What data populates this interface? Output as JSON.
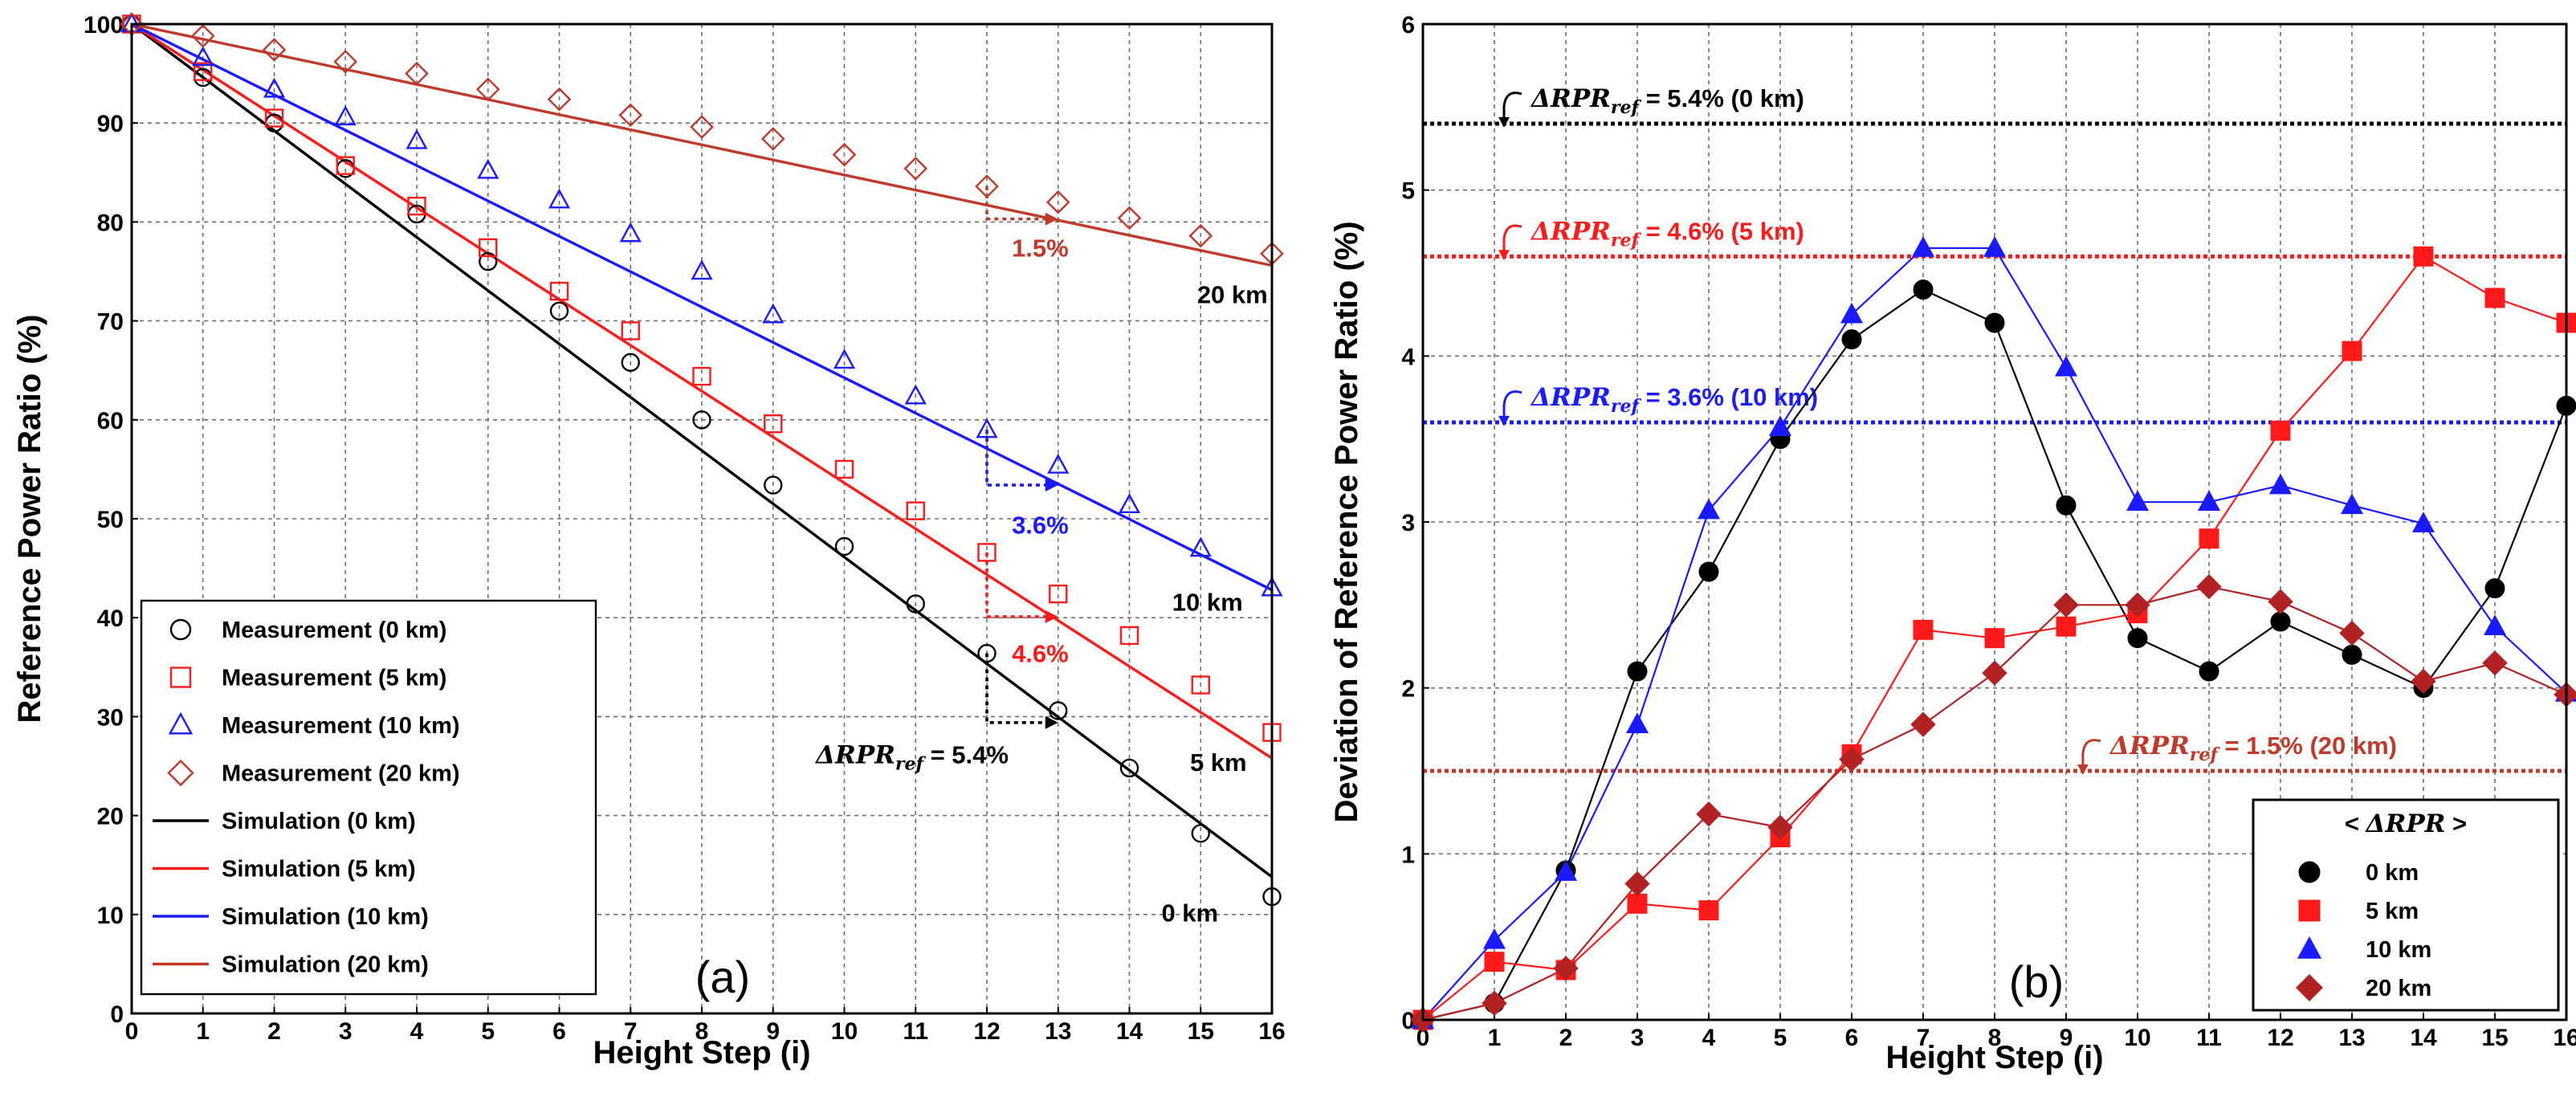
{
  "colors": {
    "black": "#000000",
    "red": "#ff1a1a",
    "blue": "#1a1aff",
    "darkred": "#c0392b",
    "diamond": "#b22222"
  },
  "chart_data": [
    {
      "id": "a",
      "type": "scatter",
      "panel_label": "(a)",
      "xlabel": "Height Step (i)",
      "ylabel": "Reference Power Ratio (%)",
      "xlim": [
        0,
        16
      ],
      "ylim": [
        0,
        100
      ],
      "xticks": [
        0,
        1,
        2,
        3,
        4,
        5,
        6,
        7,
        8,
        9,
        10,
        11,
        12,
        13,
        14,
        15,
        16
      ],
      "yticks": [
        0,
        10,
        20,
        30,
        40,
        50,
        60,
        70,
        80,
        90,
        100
      ],
      "grid": true,
      "legend_position": "bottom-left",
      "series": [
        {
          "name": "Measurement (0 km)",
          "marker": "circle",
          "color": "#000000",
          "x": [
            0,
            1,
            2,
            3,
            4,
            5,
            6,
            7,
            8,
            9,
            10,
            11,
            12,
            13,
            14,
            15,
            16
          ],
          "values": [
            100,
            94.6,
            90,
            85.4,
            80.8,
            76,
            71,
            65.8,
            60,
            53.4,
            47.2,
            41.4,
            36.4,
            30.6,
            24.8,
            18.2,
            11.8
          ]
        },
        {
          "name": "Measurement (5 km)",
          "marker": "square",
          "color": "#ff1a1a",
          "x": [
            0,
            1,
            2,
            3,
            4,
            5,
            6,
            7,
            8,
            9,
            10,
            11,
            12,
            13,
            14,
            15,
            16
          ],
          "values": [
            100,
            95.2,
            90.5,
            85.7,
            81.6,
            77.4,
            73,
            69,
            64.4,
            59.6,
            55,
            50.8,
            46.6,
            42.4,
            38.2,
            33.2,
            28.4
          ]
        },
        {
          "name": "Measurement (10 km)",
          "marker": "triangle",
          "color": "#1a1aff",
          "x": [
            0,
            1,
            2,
            3,
            4,
            5,
            6,
            7,
            8,
            9,
            10,
            11,
            12,
            13,
            14,
            15,
            16
          ],
          "values": [
            100,
            96.6,
            93.4,
            90.6,
            88.2,
            85.2,
            82.2,
            78.8,
            75,
            70.6,
            66,
            62.4,
            59,
            55.4,
            51.4,
            47,
            43
          ]
        },
        {
          "name": "Measurement (20 km)",
          "marker": "diamond",
          "color": "#c0392b",
          "x": [
            0,
            1,
            2,
            3,
            4,
            5,
            6,
            7,
            8,
            9,
            10,
            11,
            12,
            13,
            14,
            15,
            16
          ],
          "values": [
            100,
            98.8,
            97.4,
            96.2,
            95,
            93.4,
            92.4,
            90.8,
            89.6,
            88.4,
            86.8,
            85.4,
            83.6,
            82,
            80.4,
            78.6,
            76.8
          ]
        },
        {
          "name": "Simulation (0 km)",
          "type": "line",
          "color": "#000000",
          "x": [
            0,
            16
          ],
          "values": [
            100,
            13.8
          ]
        },
        {
          "name": "Simulation (5 km)",
          "type": "line",
          "color": "#ff1a1a",
          "x": [
            0,
            16
          ],
          "values": [
            100,
            25.8
          ]
        },
        {
          "name": "Simulation (10 km)",
          "type": "line",
          "color": "#1a1aff",
          "x": [
            0,
            16
          ],
          "values": [
            100,
            42.8
          ]
        },
        {
          "name": "Simulation (20 km)",
          "type": "line",
          "color": "#c0392b",
          "x": [
            0,
            16
          ],
          "values": [
            100,
            75.6
          ]
        }
      ],
      "curve_labels": [
        {
          "text": "20 km",
          "x": 14.95,
          "y": 71.8,
          "color": "#000000"
        },
        {
          "text": "10 km",
          "x": 14.6,
          "y": 40.7,
          "color": "#000000"
        },
        {
          "text": "5 km",
          "x": 14.85,
          "y": 24.5,
          "color": "#000000"
        },
        {
          "text": "0 km",
          "x": 14.45,
          "y": 9.3,
          "color": "#000000"
        }
      ],
      "annotations": [
        {
          "text": "1.5%",
          "x": 12.35,
          "y": 76.5,
          "color": "#c0392b",
          "bracket": {
            "x0": 12,
            "x1": 13,
            "ytop": 83.6,
            "ybot": 80.3
          }
        },
        {
          "text": "3.6%",
          "x": 12.35,
          "y": 48.5,
          "color": "#1a1aff",
          "bracket": {
            "x0": 12,
            "x1": 13,
            "ytop": 59,
            "ybot": 53.4
          }
        },
        {
          "text": "4.6%",
          "x": 12.35,
          "y": 35.5,
          "color": "#ff1a1a",
          "bracket": {
            "x0": 12,
            "x1": 13,
            "ytop": 46.6,
            "ybot": 40.1
          }
        },
        {
          "text": "ΔRPRref = 5.4%",
          "x": 9.6,
          "y": 25.3,
          "color": "#000000",
          "bracket": {
            "x0": 12,
            "x1": 13,
            "ytop": 36.4,
            "ybot": 29.4
          }
        }
      ]
    },
    {
      "id": "b",
      "type": "line",
      "panel_label": "(b)",
      "xlabel": "Height Step (i)",
      "ylabel": "Deviation of Reference Power Ratio (%)",
      "xlim": [
        0,
        16
      ],
      "ylim": [
        0,
        6
      ],
      "xticks": [
        0,
        1,
        2,
        3,
        4,
        5,
        6,
        7,
        8,
        9,
        10,
        11,
        12,
        13,
        14,
        15,
        16
      ],
      "yticks": [
        0,
        1,
        2,
        3,
        4,
        5,
        6
      ],
      "grid": true,
      "legend_title": "< ΔRPR >",
      "legend_position": "bottom-right",
      "series": [
        {
          "name": "0 km",
          "marker": "circle",
          "color": "#000000",
          "x": [
            0,
            1,
            2,
            3,
            4,
            5,
            6,
            7,
            8,
            9,
            10,
            11,
            12,
            13,
            14,
            15,
            16
          ],
          "values": [
            0,
            0.1,
            0.9,
            2.1,
            2.7,
            3.5,
            4.1,
            4.4,
            4.2,
            3.1,
            2.3,
            2.1,
            2.4,
            2.2,
            2.0,
            2.6,
            3.7
          ]
        },
        {
          "name": "5 km",
          "marker": "square",
          "color": "#ff1a1a",
          "x": [
            0,
            1,
            2,
            3,
            4,
            5,
            6,
            7,
            8,
            9,
            10,
            11,
            12,
            13,
            14,
            15,
            16
          ],
          "values": [
            0,
            0.35,
            0.3,
            0.7,
            0.66,
            1.1,
            1.6,
            2.35,
            2.3,
            2.37,
            2.45,
            2.9,
            3.55,
            4.03,
            4.6,
            4.35,
            4.2
          ]
        },
        {
          "name": "10 km",
          "marker": "triangle",
          "color": "#1a1aff",
          "x": [
            0,
            1,
            2,
            3,
            4,
            5,
            6,
            7,
            8,
            9,
            10,
            11,
            12,
            13,
            14,
            15,
            16
          ],
          "values": [
            0,
            0.48,
            0.89,
            1.78,
            3.07,
            3.57,
            4.25,
            4.65,
            4.65,
            3.93,
            3.12,
            3.12,
            3.22,
            3.1,
            2.99,
            2.37,
            1.97
          ]
        },
        {
          "name": "20 km",
          "marker": "diamond",
          "color": "#b22222",
          "x": [
            0,
            1,
            2,
            3,
            4,
            5,
            6,
            7,
            8,
            9,
            10,
            11,
            12,
            13,
            14,
            15,
            16
          ],
          "values": [
            0,
            0.1,
            0.31,
            0.82,
            1.24,
            1.16,
            1.57,
            1.78,
            2.09,
            2.5,
            2.5,
            2.61,
            2.52,
            2.33,
            2.04,
            2.15,
            1.96
          ]
        }
      ],
      "reference_lines": [
        {
          "name": "0 km",
          "y": 5.4,
          "color": "#000000",
          "label": "ΔRPRref = 5.4% (0 km)",
          "label_x": 1.0,
          "label_y": 5.56
        },
        {
          "name": "5 km",
          "y": 4.6,
          "color": "#ff1a1a",
          "label": "ΔRPRref = 4.6% (5 km)",
          "label_x": 1.0,
          "label_y": 4.76
        },
        {
          "name": "10 km",
          "y": 3.6,
          "color": "#1a1aff",
          "label": "ΔRPRref = 3.6% (10 km)",
          "label_x": 1.0,
          "label_y": 3.76
        },
        {
          "name": "20 km",
          "y": 1.5,
          "color": "#c0392b",
          "label": "ΔRPRref = 1.5% (20 km)",
          "label_x": 9.1,
          "label_y": 1.66
        }
      ]
    }
  ]
}
